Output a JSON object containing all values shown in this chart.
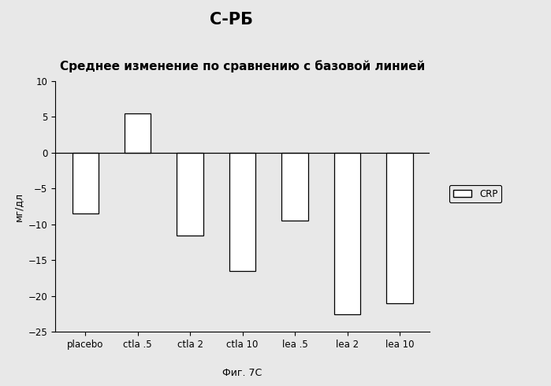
{
  "title_top": "С-РБ",
  "title_sub": "Среднее изменение по сравнению с базовой линией",
  "xlabel": "Фиг. 7С",
  "ylabel": "мг/дл",
  "categories": [
    "placebo",
    "ctla .5",
    "ctla 2",
    "ctla 10",
    "lea .5",
    "lea 2",
    "lea 10"
  ],
  "values": [
    -8.5,
    5.5,
    -11.5,
    -16.5,
    -9.5,
    -22.5,
    -21.0
  ],
  "bar_color": "#ffffff",
  "bar_edgecolor": "#000000",
  "ylim": [
    -25,
    10
  ],
  "yticks": [
    -25,
    -20,
    -15,
    -10,
    -5,
    0,
    5,
    10
  ],
  "legend_label": "CRP",
  "background_color": "#e8e8e8",
  "plot_bg_color": "#e8e8e8",
  "title_fontsize": 15,
  "subtitle_fontsize": 11,
  "axis_fontsize": 9,
  "tick_fontsize": 8.5
}
